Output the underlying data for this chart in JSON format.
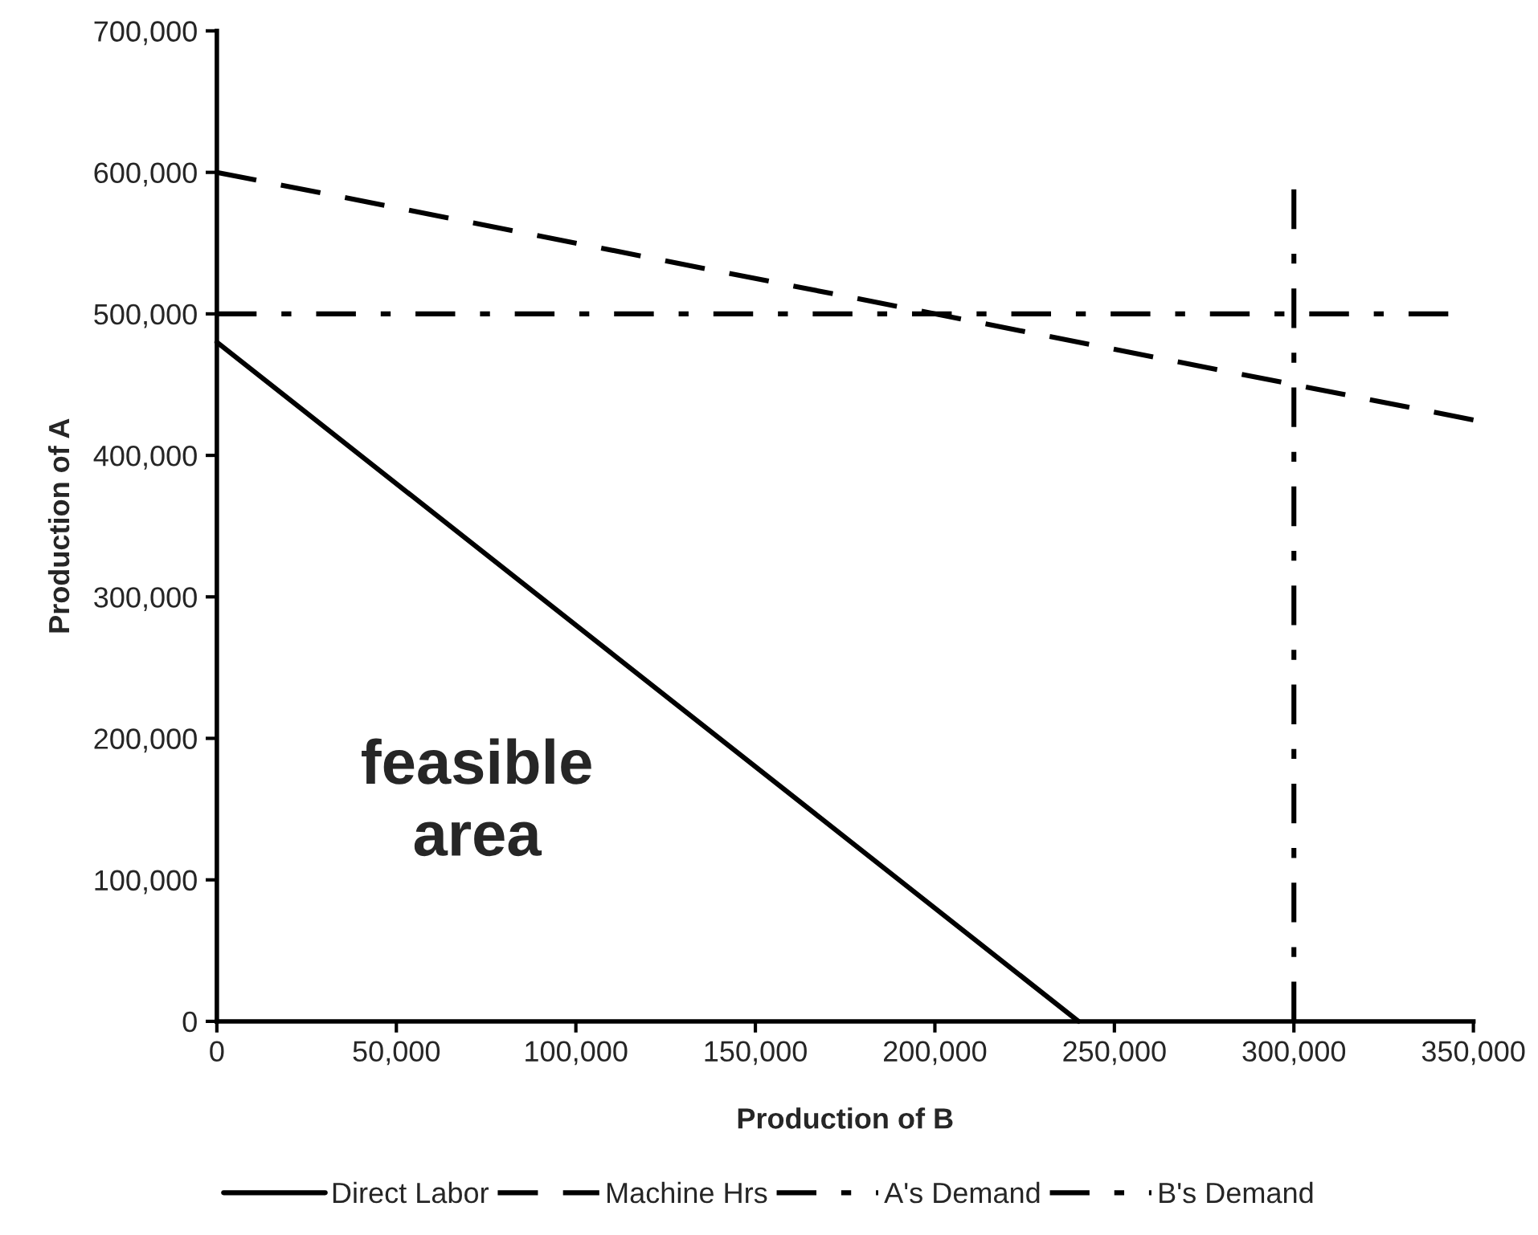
{
  "chart_data": {
    "type": "line",
    "xlabel": "Production of B",
    "ylabel": "Production of A",
    "xlim": [
      0,
      350000
    ],
    "ylim": [
      0,
      700000
    ],
    "xticks": [
      0,
      {
        "value": 50000,
        "label": "50,000"
      },
      {
        "value": 100000,
        "label": "100,000"
      },
      {
        "value": 150000,
        "label": "150,000"
      },
      {
        "value": 200000,
        "label": "200,000"
      },
      {
        "value": 250000,
        "label": "250,000"
      },
      {
        "value": 300000,
        "label": "300,000"
      },
      {
        "value": 350000,
        "label": "350,000"
      }
    ],
    "yticks": [
      0,
      {
        "value": 100000,
        "label": "100,000"
      },
      {
        "value": 200000,
        "label": "200,000"
      },
      {
        "value": 300000,
        "label": "300,000"
      },
      {
        "value": 400000,
        "label": "400,000"
      },
      {
        "value": 500000,
        "label": "500,000"
      },
      {
        "value": 600000,
        "label": "600,000"
      },
      {
        "value": 700000,
        "label": "700,000"
      }
    ],
    "grid": false,
    "legend": "bottom",
    "marker": "none",
    "series": [
      {
        "name": "Direct Labor",
        "color": "#000000",
        "line_style": "solid",
        "x": [
          0,
          240000
        ],
        "values": [
          480000,
          0
        ]
      },
      {
        "name": "Machine Hrs",
        "color": "#000000",
        "line_style": "dashed",
        "x": [
          0,
          350000
        ],
        "values": [
          600000,
          425000
        ]
      },
      {
        "name": "A's Demand",
        "color": "#000000",
        "line_style": "dashdot",
        "x": [
          0,
          343000
        ],
        "values": [
          500000,
          500000
        ]
      },
      {
        "name": "B's Demand",
        "color": "#000000",
        "line_style": "dashdot",
        "x": [
          300000,
          300000
        ],
        "values": [
          0,
          588000
        ]
      }
    ],
    "annotations": [
      "feasible\narea"
    ]
  }
}
